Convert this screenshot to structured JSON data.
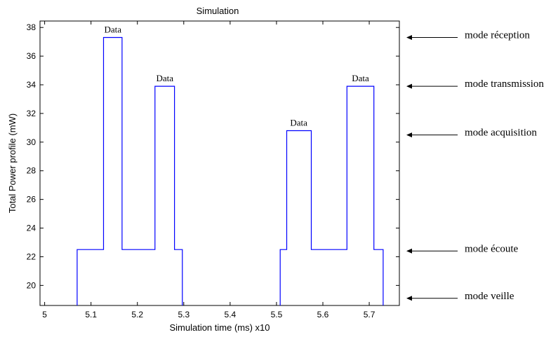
{
  "chart_data": {
    "type": "line",
    "title": "Simulation",
    "xlabel": "Simulation time (ms) x10",
    "ylabel": "Total Power profile (mW)",
    "xlim": [
      4.99,
      5.765
    ],
    "ylim": [
      18.6,
      38.45
    ],
    "x_ticks": [
      "5",
      "5.1",
      "5.2",
      "5.3",
      "5.4",
      "5.5",
      "5.6",
      "5.7"
    ],
    "y_ticks": [
      "20",
      "22",
      "24",
      "26",
      "28",
      "30",
      "32",
      "34",
      "36",
      "38"
    ],
    "grid": false,
    "line_color": "#0000ff",
    "series": [
      {
        "points": [
          [
            5.07,
            18.6
          ],
          [
            5.07,
            22.5
          ],
          [
            5.127,
            22.5
          ],
          [
            5.127,
            37.3
          ],
          [
            5.167,
            37.3
          ],
          [
            5.167,
            22.5
          ],
          [
            5.238,
            22.5
          ],
          [
            5.238,
            33.9
          ],
          [
            5.28,
            33.9
          ],
          [
            5.28,
            22.5
          ],
          [
            5.297,
            22.5
          ],
          [
            5.297,
            18.6
          ]
        ]
      },
      {
        "points": [
          [
            5.508,
            18.6
          ],
          [
            5.508,
            22.5
          ],
          [
            5.522,
            22.5
          ],
          [
            5.522,
            30.8
          ],
          [
            5.575,
            30.8
          ],
          [
            5.575,
            22.5
          ],
          [
            5.652,
            22.5
          ],
          [
            5.652,
            33.9
          ],
          [
            5.71,
            33.9
          ],
          [
            5.71,
            22.5
          ],
          [
            5.73,
            22.5
          ],
          [
            5.73,
            18.6
          ]
        ]
      }
    ],
    "data_labels": [
      {
        "text": "Data",
        "x": 5.147,
        "y": 37.3
      },
      {
        "text": "Data",
        "x": 5.259,
        "y": 33.9
      },
      {
        "text": "Data",
        "x": 5.548,
        "y": 30.8
      },
      {
        "text": "Data",
        "x": 5.681,
        "y": 33.9
      }
    ],
    "annotations": [
      {
        "text": "mode réception",
        "y": 37.3
      },
      {
        "text": "mode transmission",
        "y": 33.9
      },
      {
        "text": "mode acquisition",
        "y": 30.5
      },
      {
        "text": "mode écoute",
        "y": 22.4
      },
      {
        "text": "mode veille",
        "y": 19.1
      }
    ]
  }
}
